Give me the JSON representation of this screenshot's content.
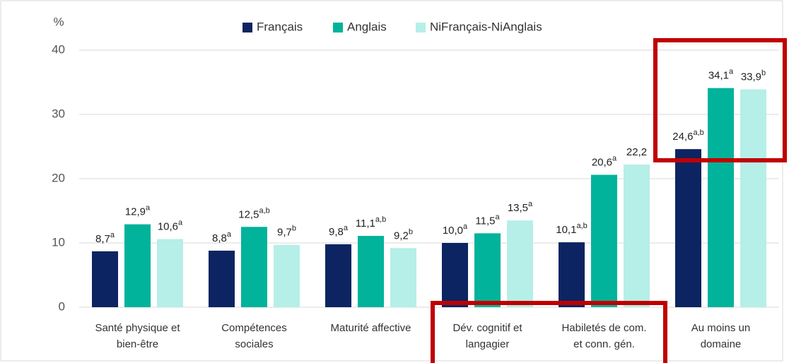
{
  "chart_data": {
    "type": "bar",
    "y_axis_label": "%",
    "categories": [
      [
        "Santé physique et",
        "bien-être"
      ],
      [
        "Compétences",
        "sociales"
      ],
      [
        "Maturité affective"
      ],
      [
        "Dév. cognitif et",
        "langagier"
      ],
      [
        "Habiletés de com.",
        "et conn. gén."
      ],
      [
        "Au moins un",
        "domaine"
      ]
    ],
    "series": [
      {
        "name": "Français",
        "color": "#0c2461",
        "values": [
          8.7,
          8.8,
          9.8,
          10.0,
          10.1,
          24.6
        ],
        "value_labels": [
          "8,7",
          "8,8",
          "9,8",
          "10,0",
          "10,1",
          "24,6"
        ],
        "notes": [
          "a",
          "a",
          "a",
          "a",
          "a,b",
          "a,b"
        ]
      },
      {
        "name": "Anglais",
        "color": "#00b39a",
        "values": [
          12.9,
          12.5,
          11.1,
          11.5,
          20.6,
          34.1
        ],
        "value_labels": [
          "12,9",
          "12,5",
          "11,1",
          "11,5",
          "20,6",
          "34,1"
        ],
        "notes": [
          "a",
          "a,b",
          "a,b",
          "a",
          "a",
          "a"
        ]
      },
      {
        "name": "NiFrançais-NiAnglais",
        "color": "#b5efe8",
        "values": [
          10.6,
          9.7,
          9.2,
          13.5,
          22.2,
          33.9
        ],
        "value_labels": [
          "10,6",
          "9,7",
          "9,2",
          "13,5",
          "22,2",
          "33,9"
        ],
        "notes": [
          "a",
          "b",
          "b",
          "a",
          null,
          "b"
        ]
      }
    ],
    "ylim": [
      0,
      40
    ],
    "yticks": [
      0,
      10,
      20,
      30,
      40
    ],
    "grid": true,
    "legend": "top"
  }
}
